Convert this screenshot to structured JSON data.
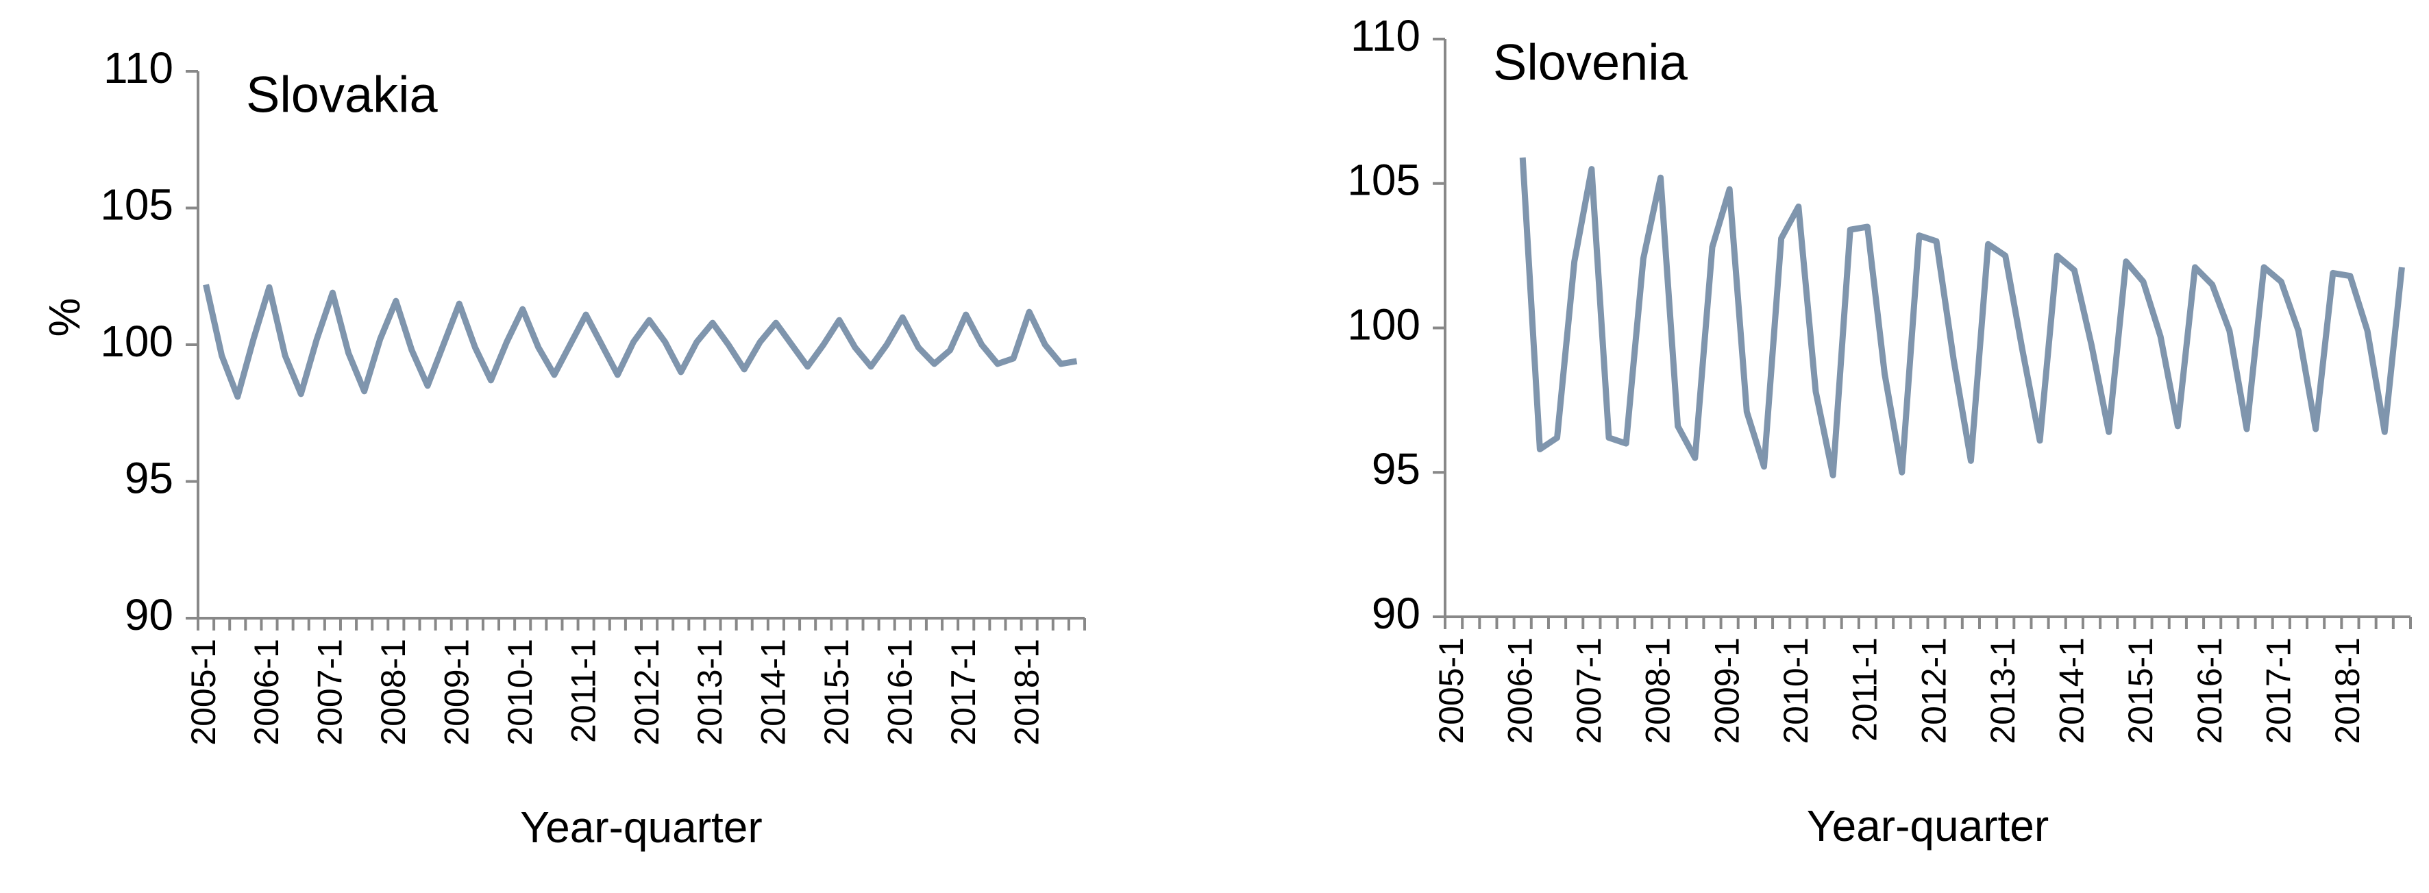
{
  "chart_data": [
    {
      "type": "line",
      "title": "Slovakia",
      "xlabel": "Year-quarter",
      "ylabel": "%",
      "categories": [
        "2005-1",
        null,
        null,
        null,
        "2006-1",
        null,
        null,
        null,
        "2007-1",
        null,
        null,
        null,
        "2008-1",
        null,
        null,
        null,
        "2009-1",
        null,
        null,
        null,
        "2010-1",
        null,
        null,
        null,
        "2011-1",
        null,
        null,
        null,
        "2012-1",
        null,
        null,
        null,
        "2013-1",
        null,
        null,
        null,
        "2014-1",
        null,
        null,
        null,
        "2015-1",
        null,
        null,
        null,
        "2016-1",
        null,
        null,
        null,
        "2017-1",
        null,
        null,
        null,
        "2018-1",
        null,
        null,
        null
      ],
      "series": [
        {
          "color": "#7f95ad",
          "values": [
            102.2,
            99.6,
            98.1,
            100.2,
            102.1,
            99.6,
            98.2,
            100.2,
            101.9,
            99.7,
            98.3,
            100.2,
            101.6,
            99.8,
            98.5,
            100.0,
            101.5,
            99.9,
            98.7,
            100.1,
            101.3,
            99.9,
            98.9,
            100.0,
            101.1,
            100.0,
            98.9,
            100.1,
            100.9,
            100.1,
            99.0,
            100.1,
            100.8,
            100.0,
            99.1,
            100.1,
            100.8,
            100.0,
            99.2,
            100.0,
            100.9,
            99.9,
            99.2,
            100.0,
            101.0,
            99.9,
            99.3,
            99.8,
            101.1,
            100.0,
            99.3,
            99.5,
            101.2,
            100.0,
            99.3,
            99.4
          ]
        }
      ],
      "ylim": [
        90,
        110
      ],
      "yticks": [
        90,
        95,
        100,
        105,
        110
      ]
    },
    {
      "type": "line",
      "title": "Slovenia",
      "xlabel": "Year-quarter",
      "categories": [
        "2005-1",
        null,
        null,
        null,
        "2006-1",
        null,
        null,
        null,
        "2007-1",
        null,
        null,
        null,
        "2008-1",
        null,
        null,
        null,
        "2009-1",
        null,
        null,
        null,
        "2010-1",
        null,
        null,
        null,
        "2011-1",
        null,
        null,
        null,
        "2012-1",
        null,
        null,
        null,
        "2013-1",
        null,
        null,
        null,
        "2014-1",
        null,
        null,
        null,
        "2015-1",
        null,
        null,
        null,
        "2016-1",
        null,
        null,
        null,
        "2017-1",
        null,
        null,
        null,
        "2018-1",
        null,
        null,
        null
      ],
      "series": [
        {
          "color": "#7f95ad",
          "values": [
            null,
            null,
            null,
            null,
            105.9,
            95.8,
            96.2,
            102.3,
            105.5,
            96.2,
            96.0,
            102.4,
            105.2,
            96.6,
            95.5,
            102.8,
            104.8,
            97.1,
            95.2,
            103.1,
            104.2,
            97.8,
            94.9,
            103.4,
            103.5,
            98.4,
            95.0,
            103.2,
            103.0,
            98.9,
            95.4,
            102.9,
            102.5,
            99.2,
            96.1,
            102.5,
            102.0,
            99.4,
            96.4,
            102.3,
            101.6,
            99.7,
            96.6,
            102.1,
            101.5,
            99.9,
            96.5,
            102.1,
            101.6,
            99.9,
            96.5,
            101.9,
            101.8,
            99.9,
            96.4,
            102.1
          ]
        }
      ],
      "ylim": [
        90,
        110
      ],
      "yticks": [
        90,
        95,
        100,
        105,
        110
      ]
    }
  ]
}
